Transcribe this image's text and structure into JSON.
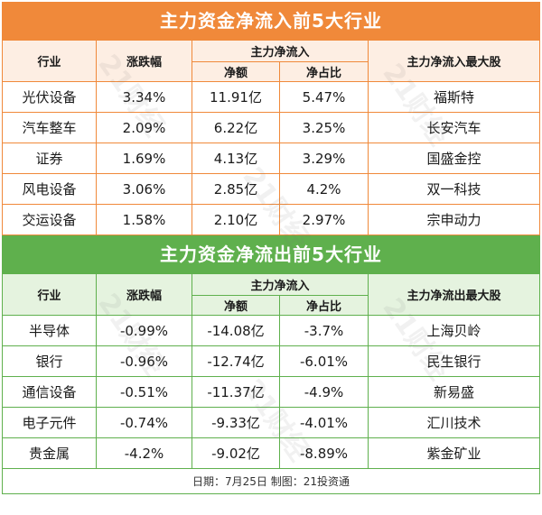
{
  "inflow": {
    "title": "主力资金净流入前5大行业",
    "headers": {
      "industry": "行业",
      "change": "涨跌幅",
      "group": "主力净流入",
      "amount": "净额",
      "ratio": "净占比",
      "top_stock": "主力净流入最大股"
    },
    "rows": [
      {
        "industry": "光伏设备",
        "change": "3.34%",
        "amount": "11.91亿",
        "ratio": "5.47%",
        "stock": "福斯特"
      },
      {
        "industry": "汽车整车",
        "change": "2.09%",
        "amount": "6.22亿",
        "ratio": "3.25%",
        "stock": "长安汽车"
      },
      {
        "industry": "证券",
        "change": "1.69%",
        "amount": "4.13亿",
        "ratio": "3.29%",
        "stock": "国盛金控"
      },
      {
        "industry": "风电设备",
        "change": "3.06%",
        "amount": "2.85亿",
        "ratio": "4.2%",
        "stock": "双一科技"
      },
      {
        "industry": "交运设备",
        "change": "1.58%",
        "amount": "2.10亿",
        "ratio": "2.97%",
        "stock": "宗申动力"
      }
    ]
  },
  "outflow": {
    "title": "主力资金净流出前5大行业",
    "headers": {
      "industry": "行业",
      "change": "涨跌幅",
      "group": "主力净流入",
      "amount": "净额",
      "ratio": "净占比",
      "top_stock": "主力净流出最大股"
    },
    "rows": [
      {
        "industry": "半导体",
        "change": "-0.99%",
        "amount": "-14.08亿",
        "ratio": "-3.7%",
        "stock": "上海贝岭"
      },
      {
        "industry": "银行",
        "change": "-0.96%",
        "amount": "-12.74亿",
        "ratio": "-6.01%",
        "stock": "民生银行"
      },
      {
        "industry": "通信设备",
        "change": "-0.51%",
        "amount": "-11.37亿",
        "ratio": "-4.9%",
        "stock": "新易盛"
      },
      {
        "industry": "电子元件",
        "change": "-0.74%",
        "amount": "-9.33亿",
        "ratio": "-4.01%",
        "stock": "汇川技术"
      },
      {
        "industry": "贵金属",
        "change": "-4.2%",
        "amount": "-9.02亿",
        "ratio": "-8.89%",
        "stock": "紫金矿业"
      }
    ]
  },
  "footer": "日期：7月25日 制图：21投资通",
  "watermark_text": "21财经",
  "colors": {
    "inflow_accent": "#f0893a",
    "outflow_accent": "#5fb04d"
  }
}
